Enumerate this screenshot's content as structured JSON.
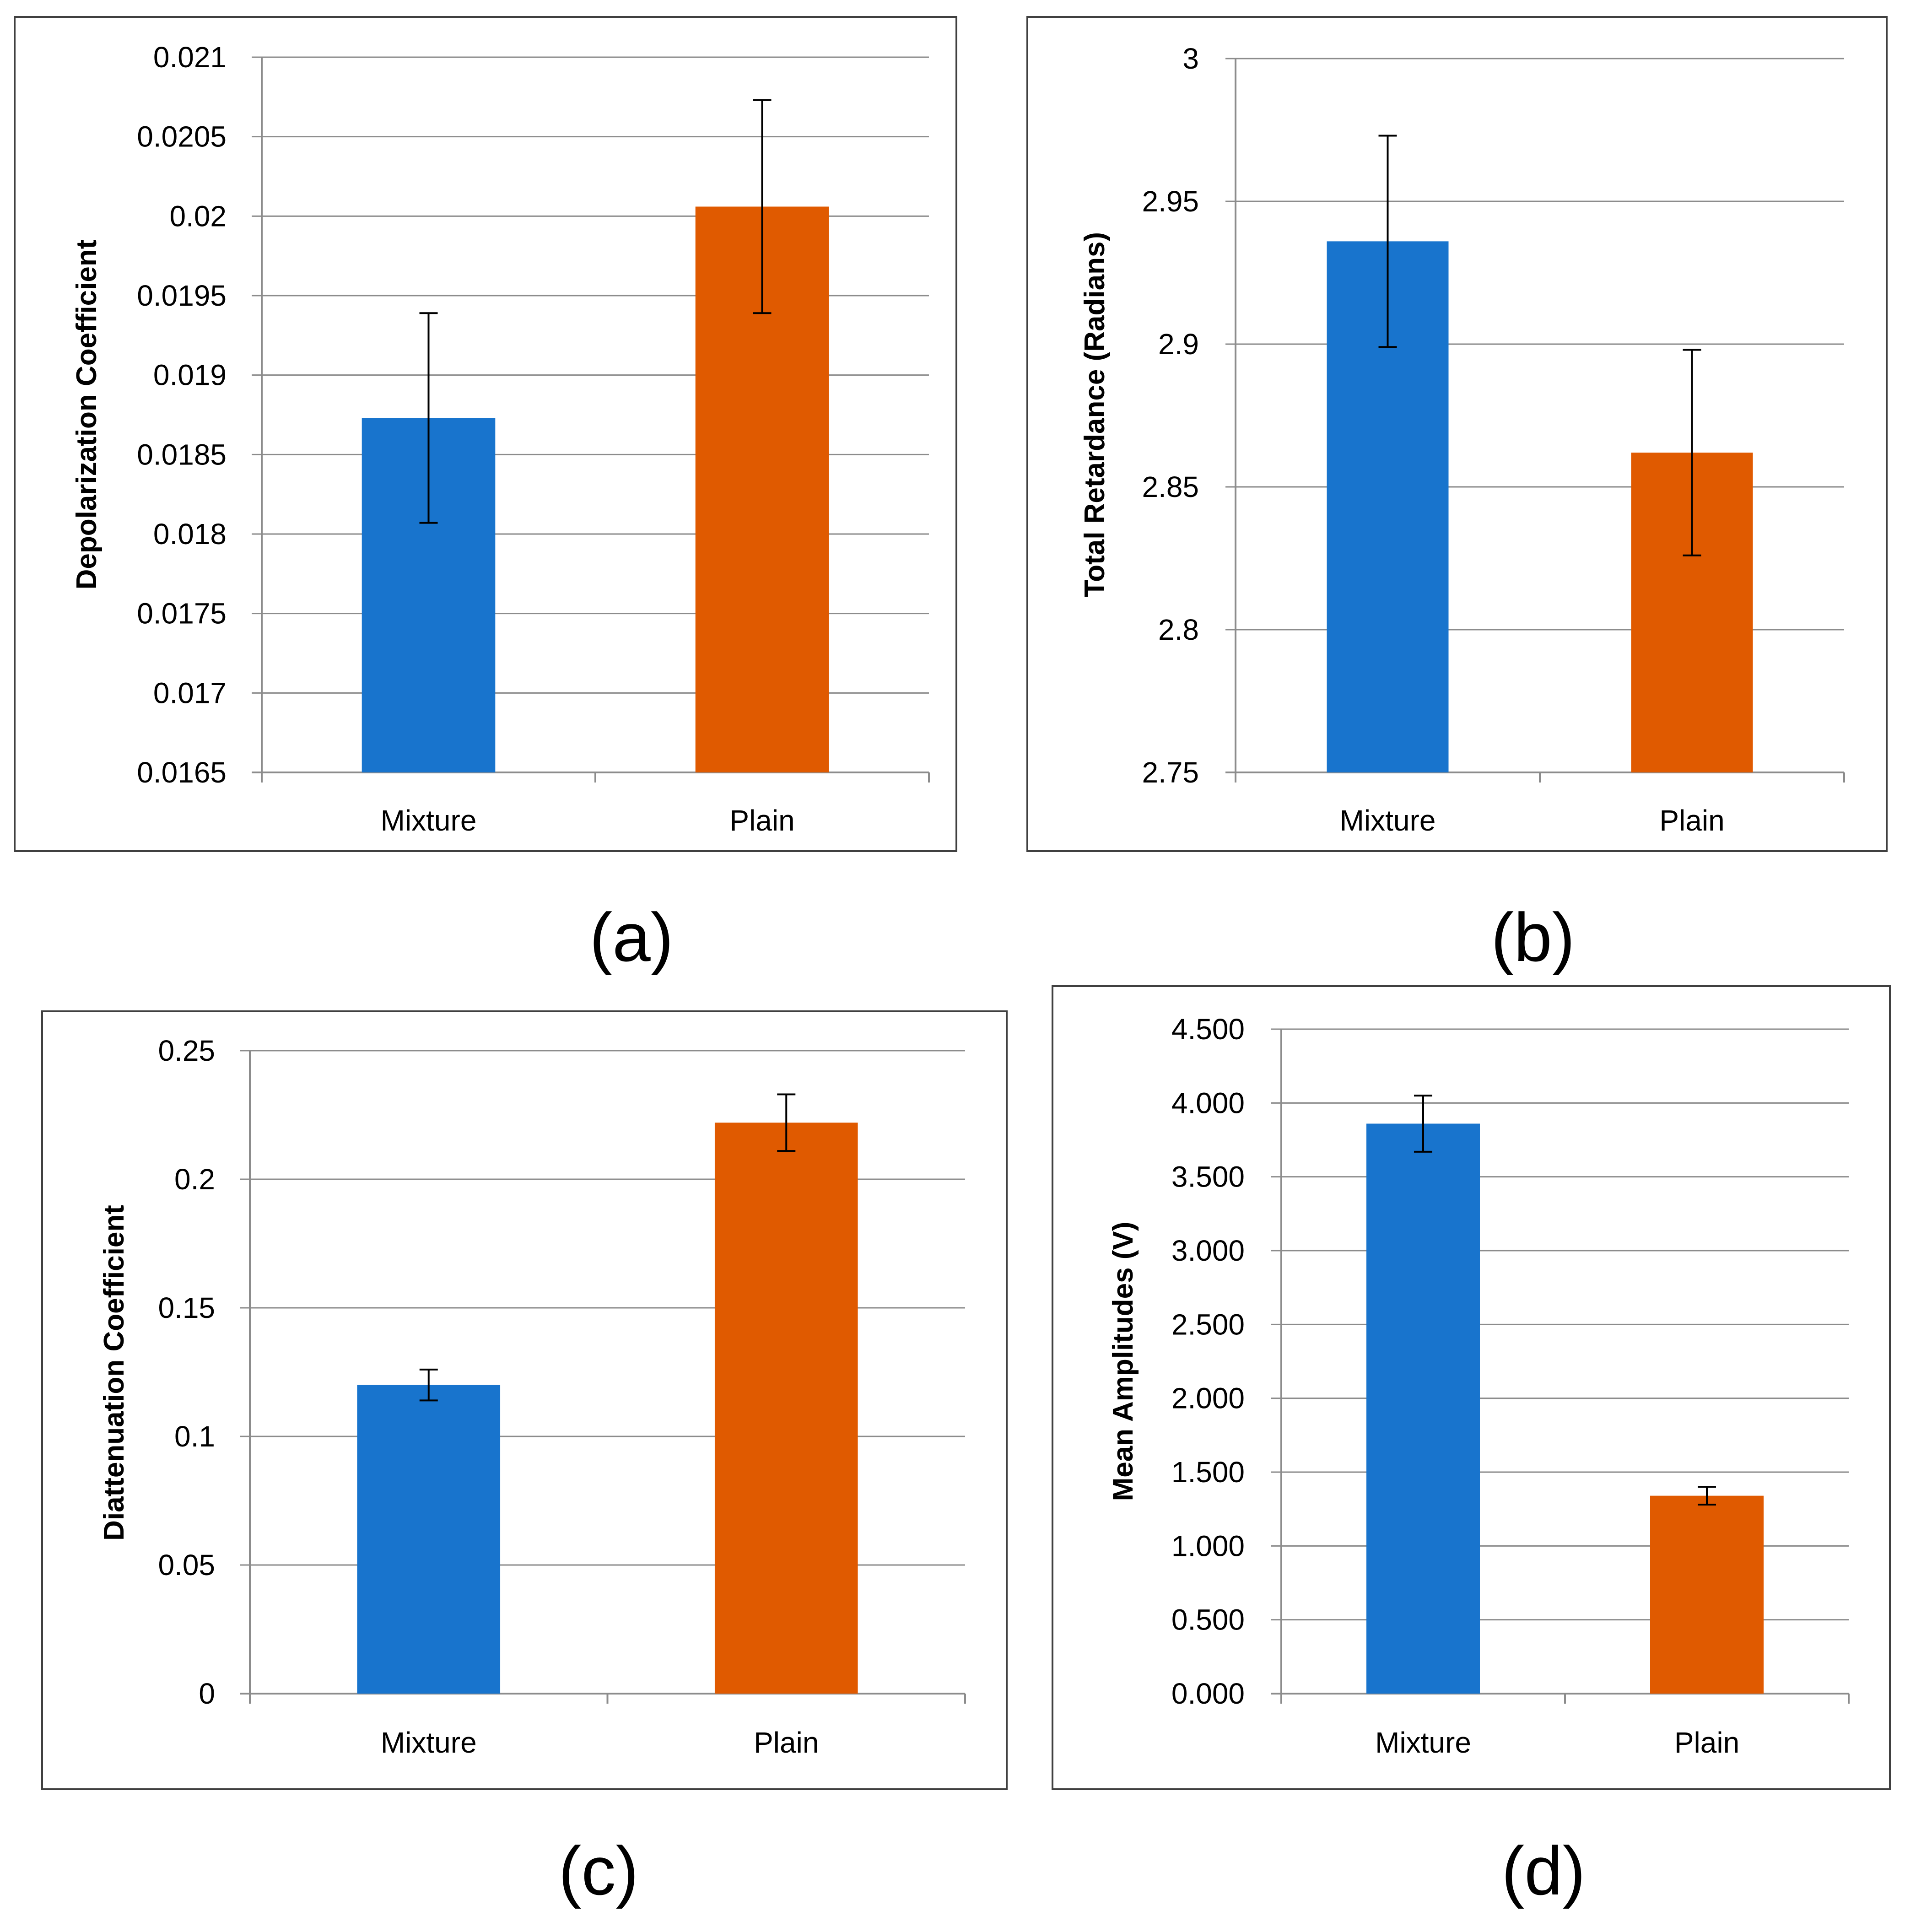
{
  "figure": {
    "colors": {
      "mixture": "#1874CD",
      "plain": "#E05A00",
      "grid": "#8C8C8C",
      "frame": "#404040",
      "error_bar": "#000000"
    }
  },
  "chart_data": [
    {
      "type": "bar",
      "panel": "(a)",
      "title": "",
      "xlabel": "",
      "ylabel": "Depolarization Coefficient",
      "categories": [
        "Mixture",
        "Plain"
      ],
      "values": [
        0.01873,
        0.02006
      ],
      "errors": [
        0.00066,
        0.00067
      ],
      "ylim": [
        0.0165,
        0.021
      ],
      "yticks": [
        0.0165,
        0.017,
        0.0175,
        0.018,
        0.0185,
        0.019,
        0.0195,
        0.02,
        0.0205,
        0.021
      ],
      "ytick_labels": [
        "0.0165",
        "0.017",
        "0.0175",
        "0.018",
        "0.0185",
        "0.019",
        "0.0195",
        "0.02",
        "0.0205",
        "0.021"
      ],
      "grid": true,
      "legend": "none"
    },
    {
      "type": "bar",
      "panel": "(b)",
      "title": "",
      "xlabel": "",
      "ylabel": "Total Retardance (Radians)",
      "categories": [
        "Mixture",
        "Plain"
      ],
      "values": [
        2.936,
        2.862
      ],
      "errors": [
        0.037,
        0.036
      ],
      "ylim": [
        2.75,
        3.0
      ],
      "yticks": [
        2.75,
        2.8,
        2.85,
        2.9,
        2.95,
        3.0
      ],
      "ytick_labels": [
        "2.75",
        "2.8",
        "2.85",
        "2.9",
        "2.95",
        "3"
      ],
      "grid": true,
      "legend": "none"
    },
    {
      "type": "bar",
      "panel": "(c)",
      "title": "",
      "xlabel": "",
      "ylabel": "Diattenuation Coefficient",
      "categories": [
        "Mixture",
        "Plain"
      ],
      "values": [
        0.12,
        0.222
      ],
      "errors": [
        0.006,
        0.011
      ],
      "ylim": [
        0,
        0.25
      ],
      "yticks": [
        0,
        0.05,
        0.1,
        0.15,
        0.2,
        0.25
      ],
      "ytick_labels": [
        "0",
        "0.05",
        "0.1",
        "0.15",
        "0.2",
        "0.25"
      ],
      "grid": true,
      "legend": "none"
    },
    {
      "type": "bar",
      "panel": "(d)",
      "title": "",
      "xlabel": "",
      "ylabel": "Mean Amplitudes (V)",
      "categories": [
        "Mixture",
        "Plain"
      ],
      "values": [
        3.86,
        1.34
      ],
      "errors": [
        0.19,
        0.06
      ],
      "ylim": [
        0,
        4.5
      ],
      "yticks": [
        0,
        0.5,
        1,
        1.5,
        2,
        2.5,
        3,
        3.5,
        4,
        4.5
      ],
      "ytick_labels": [
        "0.000",
        "0.500",
        "1.000",
        "1.500",
        "2.000",
        "2.500",
        "3.000",
        "3.500",
        "4.000",
        "4.500"
      ],
      "grid": true,
      "legend": "none"
    }
  ]
}
